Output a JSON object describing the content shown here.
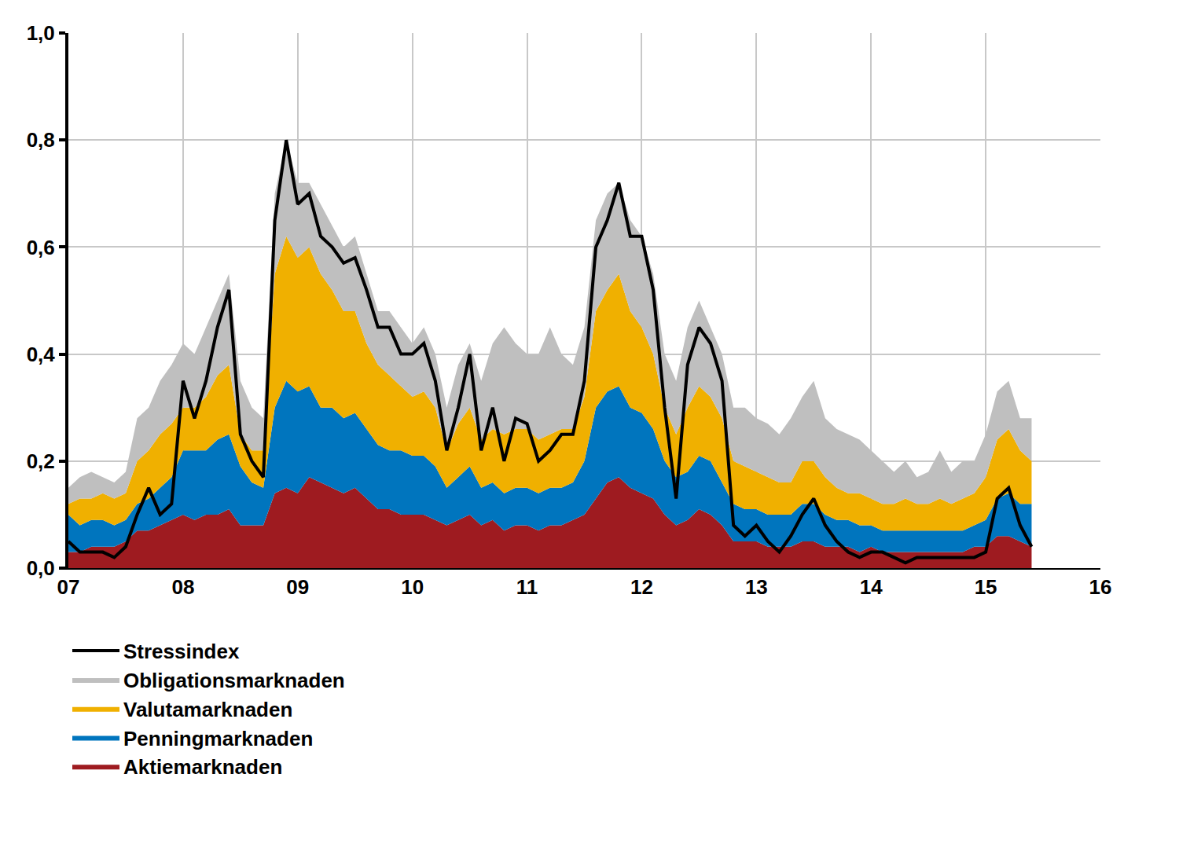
{
  "chart_data": {
    "type": "area",
    "stacked": true,
    "grid": true,
    "legend": "bottom",
    "x": [
      2007.0,
      2007.1,
      2007.2,
      2007.3,
      2007.4,
      2007.5,
      2007.6,
      2007.7,
      2007.8,
      2007.9,
      2008.0,
      2008.1,
      2008.2,
      2008.3,
      2008.4,
      2008.5,
      2008.6,
      2008.7,
      2008.8,
      2008.9,
      2009.0,
      2009.1,
      2009.2,
      2009.3,
      2009.4,
      2009.5,
      2009.6,
      2009.7,
      2009.8,
      2009.9,
      2010.0,
      2010.1,
      2010.2,
      2010.3,
      2010.4,
      2010.5,
      2010.6,
      2010.7,
      2010.8,
      2010.9,
      2011.0,
      2011.1,
      2011.2,
      2011.3,
      2011.4,
      2011.5,
      2011.6,
      2011.7,
      2011.8,
      2011.9,
      2012.0,
      2012.1,
      2012.2,
      2012.3,
      2012.4,
      2012.5,
      2012.6,
      2012.7,
      2012.8,
      2012.9,
      2013.0,
      2013.1,
      2013.2,
      2013.3,
      2013.4,
      2013.5,
      2013.6,
      2013.7,
      2013.8,
      2013.9,
      2014.0,
      2014.1,
      2014.2,
      2014.3,
      2014.4,
      2014.5,
      2014.6,
      2014.7,
      2014.8,
      2014.9,
      2015.0,
      2015.1,
      2015.2,
      2015.3,
      2015.4
    ],
    "xlim": [
      2007,
      2016
    ],
    "xticks": [
      {
        "value": 2007,
        "label": "07"
      },
      {
        "value": 2008,
        "label": "08"
      },
      {
        "value": 2009,
        "label": "09"
      },
      {
        "value": 2010,
        "label": "10"
      },
      {
        "value": 2011,
        "label": "11"
      },
      {
        "value": 2012,
        "label": "12"
      },
      {
        "value": 2013,
        "label": "13"
      },
      {
        "value": 2014,
        "label": "14"
      },
      {
        "value": 2015,
        "label": "15"
      },
      {
        "value": 2016,
        "label": "16"
      }
    ],
    "ylim": [
      0,
      1
    ],
    "yticks": [
      {
        "value": 0,
        "label": "0,0"
      },
      {
        "value": 0.2,
        "label": "0,2"
      },
      {
        "value": 0.4,
        "label": "0,4"
      },
      {
        "value": 0.6,
        "label": "0,6"
      },
      {
        "value": 0.8,
        "label": "0,8"
      },
      {
        "value": 1,
        "label": "1,0"
      }
    ],
    "y2lim": [
      0,
      1
    ],
    "y2ticks": [
      {
        "value": 0,
        "label": "0,0"
      },
      {
        "value": 0.2,
        "label": "0,2"
      },
      {
        "value": 0.4,
        "label": "0,4"
      },
      {
        "value": 0.6,
        "label": "0,6"
      },
      {
        "value": 0.8,
        "label": "0,8"
      },
      {
        "value": 1,
        "label": "1,0"
      }
    ],
    "series": [
      {
        "name": "Aktiemarknaden",
        "color": "#9e1b20",
        "type": "area",
        "values": [
          0.03,
          0.03,
          0.04,
          0.04,
          0.04,
          0.05,
          0.07,
          0.07,
          0.08,
          0.09,
          0.1,
          0.09,
          0.1,
          0.1,
          0.11,
          0.08,
          0.08,
          0.08,
          0.14,
          0.15,
          0.14,
          0.17,
          0.16,
          0.15,
          0.14,
          0.15,
          0.13,
          0.11,
          0.11,
          0.1,
          0.1,
          0.1,
          0.09,
          0.08,
          0.09,
          0.1,
          0.08,
          0.09,
          0.07,
          0.08,
          0.08,
          0.07,
          0.08,
          0.08,
          0.09,
          0.1,
          0.13,
          0.16,
          0.17,
          0.15,
          0.14,
          0.13,
          0.1,
          0.08,
          0.09,
          0.11,
          0.1,
          0.08,
          0.05,
          0.05,
          0.05,
          0.04,
          0.04,
          0.04,
          0.05,
          0.05,
          0.04,
          0.04,
          0.04,
          0.03,
          0.04,
          0.03,
          0.03,
          0.03,
          0.03,
          0.03,
          0.03,
          0.03,
          0.03,
          0.04,
          0.04,
          0.06,
          0.06,
          0.05,
          0.04
        ]
      },
      {
        "name": "Penningmarknaden",
        "color": "#0075be",
        "type": "area",
        "values": [
          0.07,
          0.05,
          0.05,
          0.05,
          0.04,
          0.04,
          0.05,
          0.06,
          0.07,
          0.08,
          0.12,
          0.13,
          0.12,
          0.14,
          0.14,
          0.11,
          0.08,
          0.07,
          0.16,
          0.2,
          0.19,
          0.17,
          0.14,
          0.15,
          0.14,
          0.14,
          0.13,
          0.12,
          0.11,
          0.12,
          0.11,
          0.11,
          0.1,
          0.07,
          0.08,
          0.09,
          0.07,
          0.07,
          0.07,
          0.07,
          0.07,
          0.07,
          0.07,
          0.07,
          0.07,
          0.1,
          0.17,
          0.17,
          0.17,
          0.15,
          0.15,
          0.13,
          0.1,
          0.09,
          0.09,
          0.1,
          0.1,
          0.08,
          0.07,
          0.06,
          0.06,
          0.06,
          0.06,
          0.06,
          0.07,
          0.07,
          0.06,
          0.05,
          0.05,
          0.05,
          0.04,
          0.04,
          0.04,
          0.04,
          0.04,
          0.04,
          0.04,
          0.04,
          0.04,
          0.04,
          0.05,
          0.07,
          0.08,
          0.07,
          0.08
        ]
      },
      {
        "name": "Valutamarknaden",
        "color": "#f0b000",
        "type": "area",
        "values": [
          0.02,
          0.05,
          0.04,
          0.05,
          0.05,
          0.05,
          0.08,
          0.09,
          0.1,
          0.1,
          0.08,
          0.08,
          0.1,
          0.12,
          0.13,
          0.06,
          0.06,
          0.07,
          0.25,
          0.27,
          0.25,
          0.26,
          0.25,
          0.22,
          0.2,
          0.19,
          0.16,
          0.15,
          0.14,
          0.12,
          0.11,
          0.12,
          0.11,
          0.07,
          0.1,
          0.11,
          0.09,
          0.1,
          0.11,
          0.11,
          0.11,
          0.1,
          0.1,
          0.11,
          0.1,
          0.12,
          0.18,
          0.19,
          0.21,
          0.18,
          0.16,
          0.14,
          0.1,
          0.08,
          0.12,
          0.13,
          0.12,
          0.12,
          0.08,
          0.08,
          0.07,
          0.07,
          0.06,
          0.06,
          0.08,
          0.08,
          0.07,
          0.06,
          0.05,
          0.06,
          0.05,
          0.05,
          0.05,
          0.06,
          0.05,
          0.05,
          0.06,
          0.05,
          0.06,
          0.06,
          0.08,
          0.11,
          0.12,
          0.1,
          0.08
        ]
      },
      {
        "name": "Obligationsmarknaden",
        "color": "#bfbfbf",
        "type": "area",
        "values": [
          0.03,
          0.04,
          0.05,
          0.03,
          0.03,
          0.04,
          0.08,
          0.08,
          0.1,
          0.11,
          0.12,
          0.1,
          0.13,
          0.14,
          0.17,
          0.1,
          0.08,
          0.06,
          0.15,
          0.18,
          0.14,
          0.12,
          0.13,
          0.12,
          0.12,
          0.14,
          0.13,
          0.1,
          0.12,
          0.11,
          0.1,
          0.12,
          0.1,
          0.08,
          0.11,
          0.12,
          0.11,
          0.16,
          0.2,
          0.16,
          0.14,
          0.16,
          0.2,
          0.14,
          0.12,
          0.13,
          0.17,
          0.18,
          0.17,
          0.17,
          0.17,
          0.15,
          0.1,
          0.1,
          0.15,
          0.16,
          0.13,
          0.12,
          0.1,
          0.11,
          0.1,
          0.1,
          0.09,
          0.12,
          0.12,
          0.15,
          0.11,
          0.11,
          0.11,
          0.1,
          0.09,
          0.08,
          0.06,
          0.07,
          0.05,
          0.06,
          0.09,
          0.06,
          0.07,
          0.06,
          0.08,
          0.09,
          0.09,
          0.06,
          0.08
        ]
      },
      {
        "name": "Stressindex",
        "color": "#000000",
        "type": "line",
        "values": [
          0.05,
          0.03,
          0.03,
          0.03,
          0.02,
          0.04,
          0.1,
          0.15,
          0.1,
          0.12,
          0.35,
          0.28,
          0.35,
          0.45,
          0.52,
          0.25,
          0.2,
          0.17,
          0.65,
          0.8,
          0.68,
          0.7,
          0.62,
          0.6,
          0.57,
          0.58,
          0.52,
          0.45,
          0.45,
          0.4,
          0.4,
          0.42,
          0.35,
          0.22,
          0.3,
          0.4,
          0.22,
          0.3,
          0.2,
          0.28,
          0.27,
          0.2,
          0.22,
          0.25,
          0.25,
          0.35,
          0.6,
          0.65,
          0.72,
          0.62,
          0.62,
          0.52,
          0.3,
          0.13,
          0.38,
          0.45,
          0.42,
          0.35,
          0.08,
          0.06,
          0.08,
          0.05,
          0.03,
          0.06,
          0.1,
          0.13,
          0.08,
          0.05,
          0.03,
          0.02,
          0.03,
          0.03,
          0.02,
          0.01,
          0.02,
          0.02,
          0.02,
          0.02,
          0.02,
          0.02,
          0.03,
          0.13,
          0.15,
          0.08,
          0.04
        ]
      }
    ]
  }
}
